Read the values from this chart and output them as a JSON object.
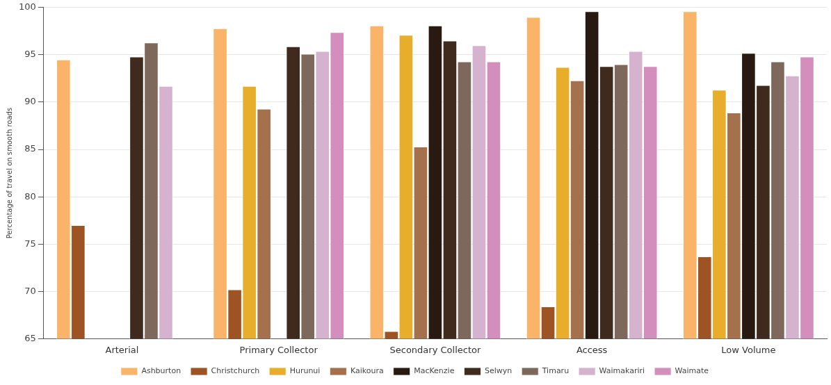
{
  "chart_data": {
    "type": "bar",
    "ylabel": "Percentage of travel on smooth roads",
    "categories": [
      "Arterial",
      "Primary Collector",
      "Secondary Collector",
      "Access",
      "Low Volume"
    ],
    "series": [
      {
        "name": "Ashburton",
        "color": "#f9b469",
        "values": [
          94.5,
          97.8,
          98.1,
          99.0,
          99.6
        ]
      },
      {
        "name": "Christchurch",
        "color": "#9e5324",
        "values": [
          77.0,
          70.2,
          65.8,
          68.4,
          73.7
        ]
      },
      {
        "name": "Hurunui",
        "color": "#e8ad2a",
        "values": [
          null,
          91.7,
          97.1,
          93.7,
          91.3
        ]
      },
      {
        "name": "Kaikoura",
        "color": "#a5704c",
        "values": [
          null,
          89.3,
          85.3,
          92.3,
          88.9
        ]
      },
      {
        "name": "MacKenzie",
        "color": "#281911",
        "values": [
          null,
          null,
          98.1,
          99.6,
          95.2
        ]
      },
      {
        "name": "Selwyn",
        "color": "#3f2a1d",
        "values": [
          94.8,
          95.9,
          96.5,
          93.8,
          91.8
        ]
      },
      {
        "name": "Timaru",
        "color": "#7e685c",
        "values": [
          96.3,
          95.1,
          94.3,
          94.0,
          94.3
        ]
      },
      {
        "name": "Waimakariri",
        "color": "#d5b3cf",
        "values": [
          91.7,
          95.4,
          96.0,
          95.4,
          92.8
        ]
      },
      {
        "name": "Waimate",
        "color": "#d48ebd",
        "values": [
          null,
          97.4,
          94.3,
          93.8,
          94.8
        ]
      }
    ],
    "ylim": [
      65,
      100
    ],
    "yticks": [
      65,
      70,
      75,
      80,
      85,
      90,
      95,
      100
    ],
    "grid": "y",
    "legend": "bottom"
  }
}
